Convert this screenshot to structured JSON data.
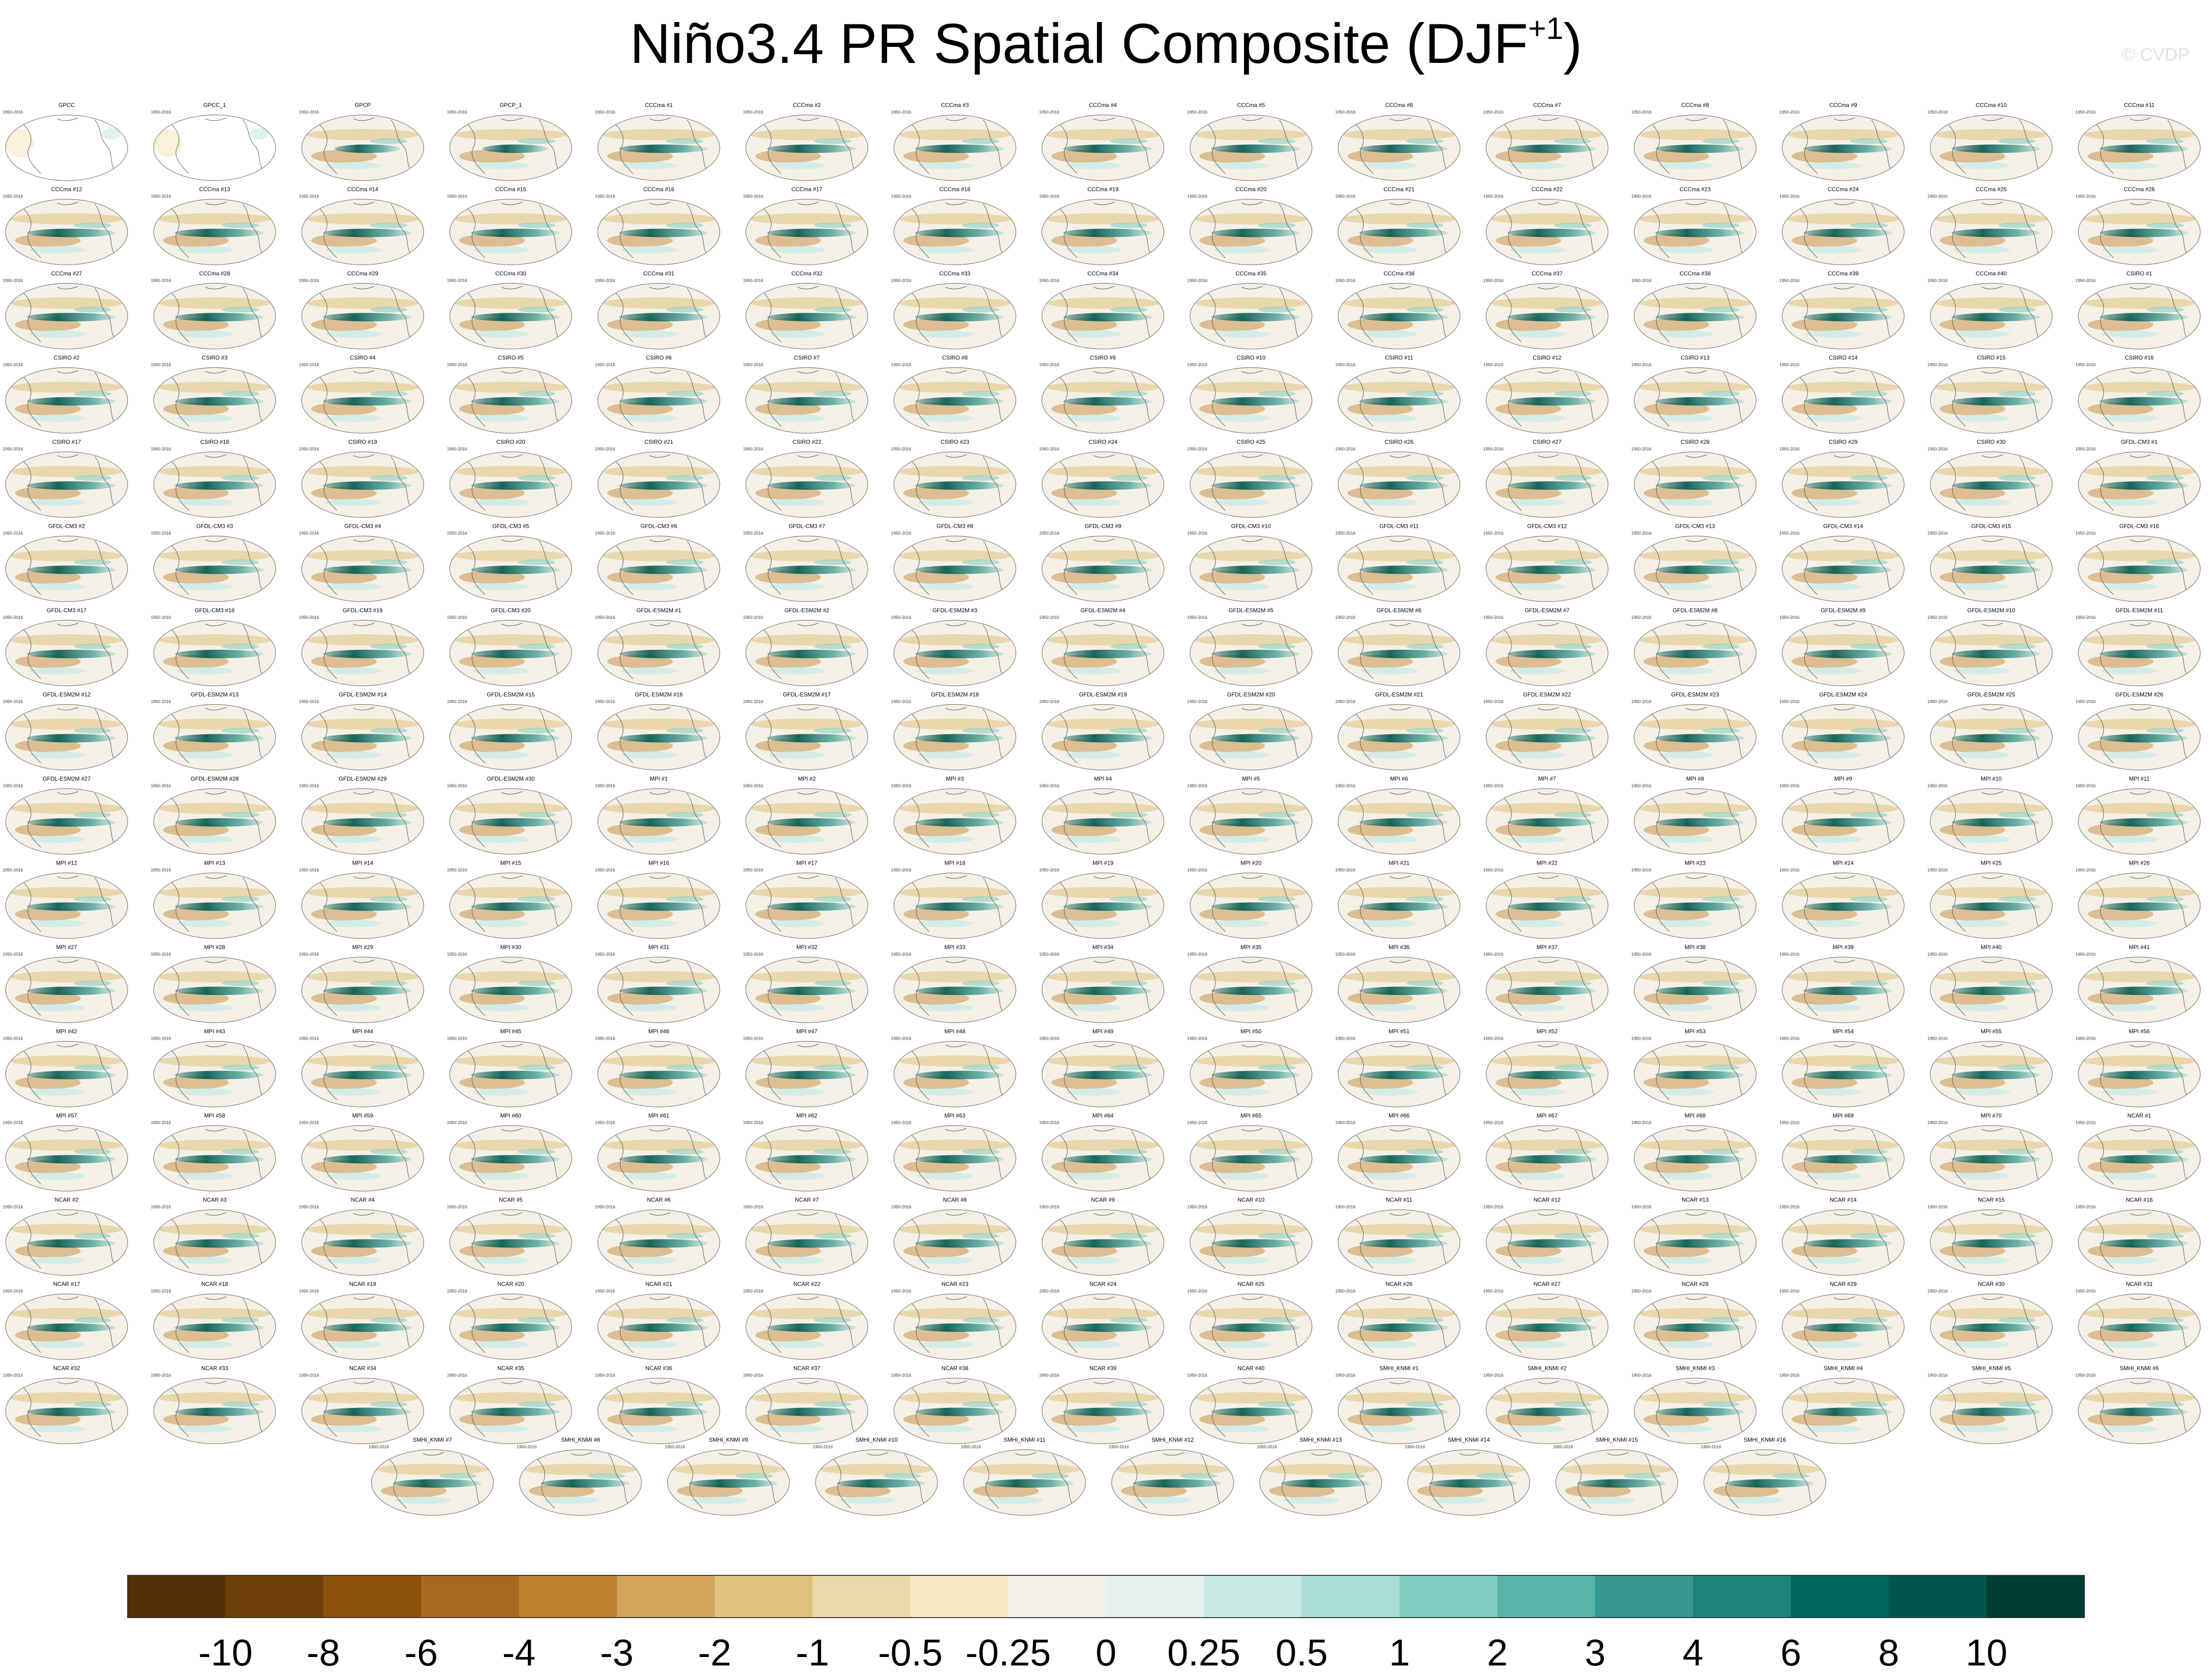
{
  "title": "Niño3.4 PR Spatial Composite (DJF",
  "title_superscript": "+1",
  "watermark": "© CVDP",
  "panels": [
    [
      "GPCC",
      "GPCC_1",
      "GPCP",
      "GPCP_1",
      "CCCma #1",
      "CCCma #2",
      "CCCma #3",
      "CCCma #4",
      "CCCma #5",
      "CCCma #6",
      "CCCma #7",
      "CCCma #8",
      "CCCma #9",
      "CCCma #10",
      "CCCma #11"
    ],
    [
      "CCCma #12",
      "CCCma #13",
      "CCCma #14",
      "CCCma #15",
      "CCCma #16",
      "CCCma #17",
      "CCCma #18",
      "CCCma #19",
      "CCCma #20",
      "CCCma #21",
      "CCCma #22",
      "CCCma #23",
      "CCCma #24",
      "CCCma #25",
      "CCCma #26"
    ],
    [
      "CCCma #27",
      "CCCma #28",
      "CCCma #29",
      "CCCma #30",
      "CCCma #31",
      "CCCma #32",
      "CCCma #33",
      "CCCma #34",
      "CCCma #35",
      "CCCma #36",
      "CCCma #37",
      "CCCma #38",
      "CCCma #39",
      "CCCma #40",
      "CSIRO #1"
    ],
    [
      "CSIRO #2",
      "CSIRO #3",
      "CSIRO #4",
      "CSIRO #5",
      "CSIRO #6",
      "CSIRO #7",
      "CSIRO #8",
      "CSIRO #9",
      "CSIRO #10",
      "CSIRO #11",
      "CSIRO #12",
      "CSIRO #13",
      "CSIRO #14",
      "CSIRO #15",
      "CSIRO #16"
    ],
    [
      "CSIRO #17",
      "CSIRO #18",
      "CSIRO #19",
      "CSIRO #20",
      "CSIRO #21",
      "CSIRO #22",
      "CSIRO #23",
      "CSIRO #24",
      "CSIRO #25",
      "CSIRO #26",
      "CSIRO #27",
      "CSIRO #28",
      "CSIRO #29",
      "CSIRO #30",
      "GFDL-CM3 #1"
    ],
    [
      "GFDL-CM3 #2",
      "GFDL-CM3 #3",
      "GFDL-CM3 #4",
      "GFDL-CM3 #5",
      "GFDL-CM3 #6",
      "GFDL-CM3 #7",
      "GFDL-CM3 #8",
      "GFDL-CM3 #9",
      "GFDL-CM3 #10",
      "GFDL-CM3 #11",
      "GFDL-CM3 #12",
      "GFDL-CM3 #13",
      "GFDL-CM3 #14",
      "GFDL-CM3 #15",
      "GFDL-CM3 #16"
    ],
    [
      "GFDL-CM3 #17",
      "GFDL-CM3 #18",
      "GFDL-CM3 #19",
      "GFDL-CM3 #20",
      "GFDL-ESM2M #1",
      "GFDL-ESM2M #2",
      "GFDL-ESM2M #3",
      "GFDL-ESM2M #4",
      "GFDL-ESM2M #5",
      "GFDL-ESM2M #6",
      "GFDL-ESM2M #7",
      "GFDL-ESM2M #8",
      "GFDL-ESM2M #9",
      "GFDL-ESM2M #10",
      "GFDL-ESM2M #11"
    ],
    [
      "GFDL-ESM2M #12",
      "GFDL-ESM2M #13",
      "GFDL-ESM2M #14",
      "GFDL-ESM2M #15",
      "GFDL-ESM2M #16",
      "GFDL-ESM2M #17",
      "GFDL-ESM2M #18",
      "GFDL-ESM2M #19",
      "GFDL-ESM2M #20",
      "GFDL-ESM2M #21",
      "GFDL-ESM2M #22",
      "GFDL-ESM2M #23",
      "GFDL-ESM2M #24",
      "GFDL-ESM2M #25",
      "GFDL-ESM2M #26"
    ],
    [
      "GFDL-ESM2M #27",
      "GFDL-ESM2M #28",
      "GFDL-ESM2M #29",
      "GFDL-ESM2M #30",
      "MPI #1",
      "MPI #2",
      "MPI #3",
      "MPI #4",
      "MPI #5",
      "MPI #6",
      "MPI #7",
      "MPI #8",
      "MPI #9",
      "MPI #10",
      "MPI #11"
    ],
    [
      "MPI #12",
      "MPI #13",
      "MPI #14",
      "MPI #15",
      "MPI #16",
      "MPI #17",
      "MPI #18",
      "MPI #19",
      "MPI #20",
      "MPI #21",
      "MPI #22",
      "MPI #23",
      "MPI #24",
      "MPI #25",
      "MPI #26"
    ],
    [
      "MPI #27",
      "MPI #28",
      "MPI #29",
      "MPI #30",
      "MPI #31",
      "MPI #32",
      "MPI #33",
      "MPI #34",
      "MPI #35",
      "MPI #36",
      "MPI #37",
      "MPI #38",
      "MPI #39",
      "MPI #40",
      "MPI #41"
    ],
    [
      "MPI #42",
      "MPI #43",
      "MPI #44",
      "MPI #45",
      "MPI #46",
      "MPI #47",
      "MPI #48",
      "MPI #49",
      "MPI #50",
      "MPI #51",
      "MPI #52",
      "MPI #53",
      "MPI #54",
      "MPI #55",
      "MPI #56"
    ],
    [
      "MPI #57",
      "MPI #58",
      "MPI #59",
      "MPI #60",
      "MPI #61",
      "MPI #62",
      "MPI #63",
      "MPI #64",
      "MPI #65",
      "MPI #66",
      "MPI #67",
      "MPI #68",
      "MPI #69",
      "MPI #70",
      "NCAR #1"
    ],
    [
      "NCAR #2",
      "NCAR #3",
      "NCAR #4",
      "NCAR #5",
      "NCAR #6",
      "NCAR #7",
      "NCAR #8",
      "NCAR #9",
      "NCAR #10",
      "NCAR #11",
      "NCAR #12",
      "NCAR #13",
      "NCAR #14",
      "NCAR #15",
      "NCAR #16"
    ],
    [
      "NCAR #17",
      "NCAR #18",
      "NCAR #19",
      "NCAR #20",
      "NCAR #21",
      "NCAR #22",
      "NCAR #23",
      "NCAR #24",
      "NCAR #25",
      "NCAR #26",
      "NCAR #27",
      "NCAR #28",
      "NCAR #29",
      "NCAR #30",
      "NCAR #31"
    ],
    [
      "NCAR #32",
      "NCAR #33",
      "NCAR #34",
      "NCAR #35",
      "NCAR #36",
      "NCAR #37",
      "NCAR #38",
      "NCAR #39",
      "NCAR #40",
      "SMHI_KNMI #1",
      "SMHI_KNMI #2",
      "SMHI_KNMI #3",
      "SMHI_KNMI #4",
      "SMHI_KNMI #5",
      "SMHI_KNMI #6"
    ],
    [
      "SMHI_KNMI #7",
      "SMHI_KNMI #8",
      "SMHI_KNMI #9",
      "SMHI_KNMI #10",
      "SMHI_KNMI #11",
      "SMHI_KNMI #12",
      "SMHI_KNMI #13",
      "SMHI_KNMI #14",
      "SMHI_KNMI #15",
      "SMHI_KNMI #16"
    ]
  ],
  "chart_data": {
    "type": "heatmap",
    "title": "Niño3.4 PR Spatial Composite (DJF+1)",
    "panel_years": "1950-2016",
    "colorbar": {
      "levels": [
        "-10",
        "-8",
        "-6",
        "-4",
        "-3",
        "-2",
        "-1",
        "-0.5",
        "-0.25",
        "0",
        "0.25",
        "0.5",
        "1",
        "2",
        "3",
        "4",
        "6",
        "8",
        "10"
      ],
      "colors": [
        "#543005",
        "#6e4009",
        "#8c510a",
        "#a9681f",
        "#bf812d",
        "#d2a45c",
        "#dfc27d",
        "#ebd9a7",
        "#f6e8c3",
        "#f5f0e6",
        "#e4f1ee",
        "#c7eae5",
        "#a9dfd6",
        "#80cdc1",
        "#5ab4a7",
        "#35978f",
        "#1e8279",
        "#01665e",
        "#01564d",
        "#003c30"
      ]
    }
  }
}
